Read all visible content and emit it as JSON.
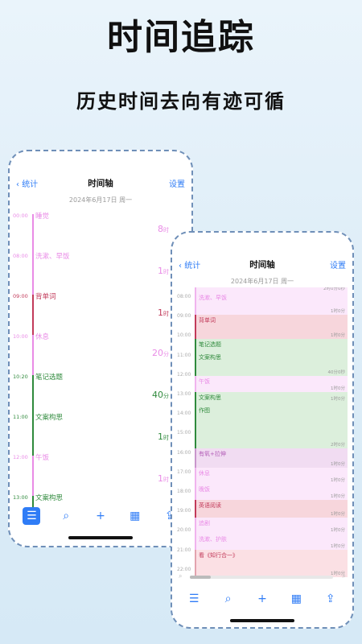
{
  "hero": {
    "title": "时间追踪",
    "subtitle": "历史时间去向有迹可循"
  },
  "left_phone": {
    "nav": {
      "back": "统计",
      "title": "时间轴",
      "settings": "设置"
    },
    "date": "2024年6月17日 周一",
    "timeline": [
      {
        "time": "00:00",
        "name": "睡觉",
        "color": "#e98be6"
      },
      {
        "time": "08:00",
        "name": "洗漱、早饭",
        "color": "#e98be6"
      },
      {
        "time": "09:00",
        "name": "背单词",
        "color": "#c23a5a"
      },
      {
        "time": "10:00",
        "name": "休息",
        "color": "#e98be6"
      },
      {
        "time": "10:20",
        "name": "笔记选题",
        "color": "#2f8a3c"
      },
      {
        "time": "11:00",
        "name": "文案构思",
        "color": "#2f8a3c"
      },
      {
        "time": "12:00",
        "name": "午饭",
        "color": "#e98be6"
      },
      {
        "time": "13:00",
        "name": "文案构思",
        "color": "#2f8a3c"
      }
    ],
    "durations": [
      {
        "main": "8",
        "unit": "时",
        "color": "#e98be6"
      },
      {
        "main": "1",
        "unit": "时",
        "color": "#e98be6"
      },
      {
        "main": "1",
        "unit": "时",
        "color": "#c23a5a"
      },
      {
        "main": "20",
        "unit": "分",
        "color": "#e98be6"
      },
      {
        "main": "40",
        "unit": "分",
        "color": "#2f8a3c"
      },
      {
        "main": "1",
        "unit": "时",
        "color": "#2f8a3c"
      },
      {
        "main": "1",
        "unit": "时",
        "color": "#e98be6"
      }
    ]
  },
  "right_phone": {
    "nav": {
      "back": "统计",
      "title": "时间轴",
      "settings": "设置"
    },
    "date": "2024年6月17日 周一",
    "times": [
      "08:00",
      "09:00",
      "10:00",
      "11:00",
      "12:00",
      "13:00",
      "14:00",
      "15:00",
      "16:00",
      "17:00",
      "18:00",
      "19:00",
      "20:00",
      "21:00",
      "22:00"
    ],
    "blocks": [
      {
        "name": "",
        "dur": "2时0分0秒",
        "bg": "#fbe8fb",
        "border": "#f0b4ee",
        "color": "#e98be6"
      },
      {
        "name": "洗漱、早饭",
        "dur": "1时0分",
        "bg": "#fbe8fb",
        "border": "#f0b4ee",
        "color": "#e98be6"
      },
      {
        "name": "背单词",
        "dur": "1时0分",
        "bg": "#f7d6dc",
        "border": "#c23a5a",
        "color": "#c23a5a"
      },
      {
        "name": "笔记选题",
        "name2": "文案构思",
        "dur": "40分0秒",
        "bg": "#dcefdc",
        "border": "#2f8a3c",
        "color": "#2f8a3c"
      },
      {
        "name": "午饭",
        "dur": "1时0分",
        "bg": "#fbe8fb",
        "border": "#f0b4ee",
        "color": "#e98be6"
      },
      {
        "name": "文案构思",
        "name2": "作图",
        "dur": "1时0分",
        "dur2": "2时0分",
        "bg": "#dcefdc",
        "border": "#2f8a3c",
        "color": "#2f8a3c"
      },
      {
        "name": "有氧+拉伸",
        "dur": "1时0分",
        "bg": "#f1dcf2",
        "border": "#c996cc",
        "color": "#b45fb8"
      },
      {
        "name": "休息",
        "dur": "1时0分",
        "bg": "#fbe8fb",
        "border": "#f0b4ee",
        "color": "#e98be6"
      },
      {
        "name": "晚饭",
        "dur": "1时0分",
        "bg": "#fbe8fb",
        "border": "#f0b4ee",
        "color": "#e98be6"
      },
      {
        "name": "英语阅读",
        "dur": "1时0分",
        "bg": "#f7d6dc",
        "border": "#c23a5a",
        "color": "#c23a5a"
      },
      {
        "name": "追剧",
        "dur": "1时0分",
        "bg": "#fbe8fb",
        "border": "#f0b4ee",
        "color": "#e98be6"
      },
      {
        "name": "洗漱、护肤",
        "dur": "1时0分",
        "bg": "#fbe8fb",
        "border": "#f0b4ee",
        "color": "#e98be6"
      },
      {
        "name": "看《知行合一》",
        "dur": "1时0分",
        "bg": "#fbe0e4",
        "border": "#e3a3ae",
        "color": "#c23a5a"
      }
    ]
  },
  "tabbar_icons": [
    "list-icon",
    "search-icon",
    "plus-icon",
    "calendar-icon",
    "share-icon"
  ],
  "accent_color": "#2f7cf6"
}
